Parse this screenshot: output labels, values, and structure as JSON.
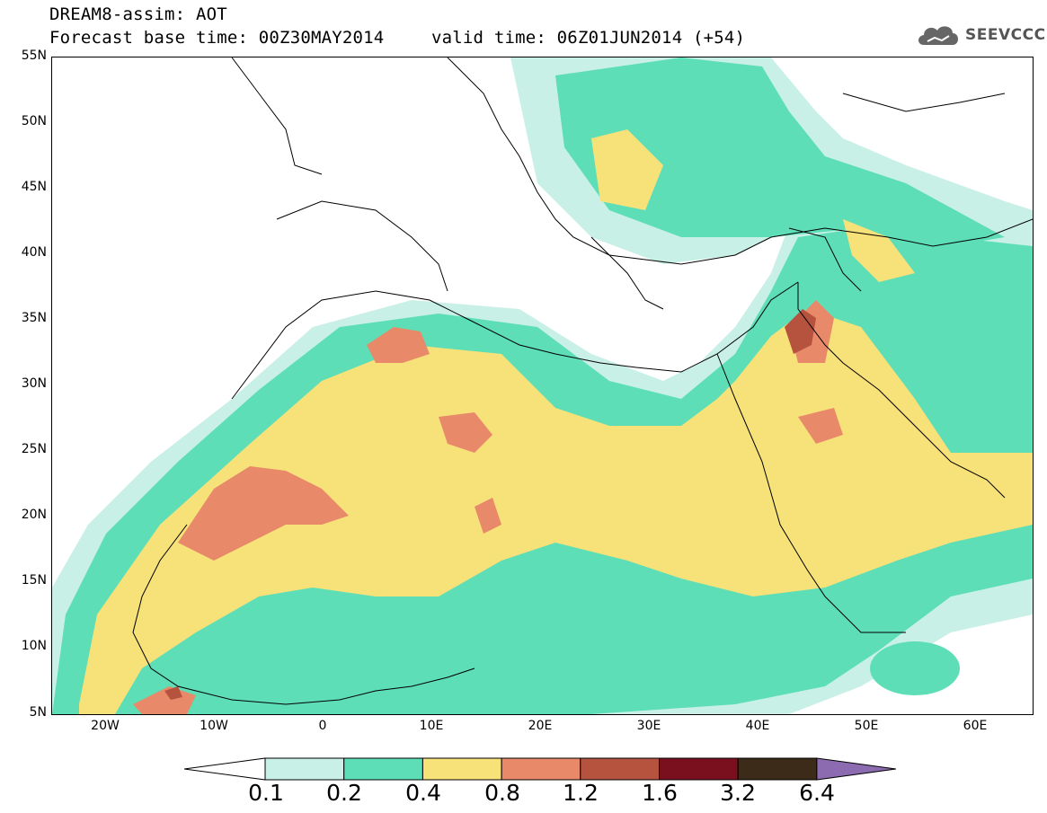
{
  "title": {
    "line1": "DREAM8-assim: AOT",
    "line2_left": "Forecast base time: 00Z30MAY2014",
    "line2_right": "valid time: 06Z01JUN2014 (+54)"
  },
  "logo": {
    "text": "SEEVCCC",
    "icon": "cloud-icon"
  },
  "map": {
    "lat_ticks": [
      "55N",
      "50N",
      "45N",
      "40N",
      "35N",
      "30N",
      "25N",
      "20N",
      "15N",
      "10N",
      "5N"
    ],
    "lon_ticks": [
      "20W",
      "10W",
      "0",
      "10E",
      "20E",
      "30E",
      "40E",
      "50E",
      "60E"
    ],
    "lon_range": [
      -25,
      65
    ],
    "lat_range": [
      5,
      55
    ]
  },
  "colorbar": {
    "labels": [
      "0.1",
      "0.2",
      "0.4",
      "0.8",
      "1.2",
      "1.6",
      "3.2",
      "6.4"
    ],
    "colors": [
      "#ffffff",
      "#c9f0e6",
      "#5ddeb6",
      "#f7e27a",
      "#e8896a",
      "#b5533f",
      "#7a0f1e",
      "#3d2b1a",
      "#8c6bb1"
    ]
  }
}
